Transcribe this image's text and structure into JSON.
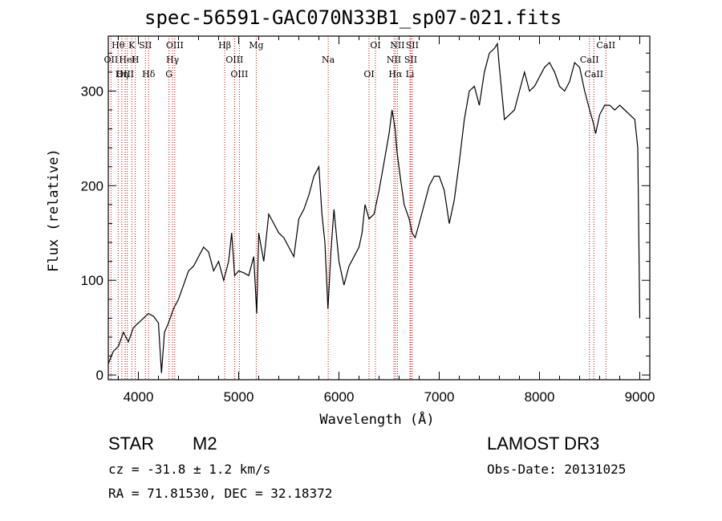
{
  "chart_data": {
    "type": "line",
    "title": "spec-56591-GAC070N33B1_sp07-021.fits",
    "xlabel": "Wavelength (Å)",
    "ylabel": "Flux (relative)",
    "xlim": [
      3700,
      9100
    ],
    "ylim": [
      -5,
      358
    ],
    "xticks": [
      4000,
      5000,
      6000,
      7000,
      8000,
      9000
    ],
    "yticks": [
      0,
      100,
      200,
      300
    ],
    "series": [
      {
        "name": "flux",
        "x": [
          3700,
          3750,
          3800,
          3850,
          3900,
          3950,
          4000,
          4050,
          4100,
          4150,
          4200,
          4230,
          4260,
          4300,
          4350,
          4400,
          4450,
          4500,
          4550,
          4600,
          4650,
          4700,
          4750,
          4800,
          4850,
          4900,
          4930,
          4960,
          5000,
          5050,
          5100,
          5150,
          5180,
          5200,
          5250,
          5300,
          5350,
          5400,
          5450,
          5500,
          5550,
          5600,
          5650,
          5700,
          5750,
          5800,
          5830,
          5860,
          5890,
          5920,
          5950,
          6000,
          6050,
          6100,
          6150,
          6200,
          6230,
          6260,
          6300,
          6350,
          6400,
          6450,
          6500,
          6530,
          6560,
          6580,
          6610,
          6650,
          6700,
          6730,
          6760,
          6800,
          6850,
          6900,
          6950,
          7000,
          7050,
          7100,
          7150,
          7200,
          7250,
          7300,
          7350,
          7400,
          7450,
          7500,
          7550,
          7580,
          7600,
          7650,
          7700,
          7750,
          7800,
          7850,
          7900,
          7950,
          8000,
          8050,
          8100,
          8150,
          8200,
          8250,
          8300,
          8350,
          8400,
          8450,
          8500,
          8540,
          8560,
          8600,
          8650,
          8700,
          8750,
          8800,
          8850,
          8900,
          8950,
          8980,
          9000
        ],
        "values": [
          12,
          25,
          30,
          45,
          35,
          50,
          55,
          60,
          65,
          62,
          55,
          2,
          45,
          55,
          70,
          80,
          95,
          110,
          115,
          125,
          135,
          130,
          110,
          120,
          100,
          120,
          150,
          105,
          110,
          108,
          105,
          125,
          65,
          150,
          120,
          170,
          160,
          150,
          145,
          135,
          125,
          165,
          175,
          190,
          210,
          220,
          170,
          140,
          70,
          130,
          175,
          120,
          95,
          115,
          125,
          135,
          150,
          180,
          165,
          170,
          195,
          225,
          255,
          280,
          260,
          235,
          210,
          180,
          165,
          150,
          145,
          160,
          180,
          200,
          210,
          210,
          195,
          160,
          185,
          225,
          270,
          300,
          305,
          285,
          320,
          340,
          345,
          350,
          325,
          270,
          275,
          280,
          300,
          320,
          300,
          305,
          315,
          325,
          330,
          320,
          305,
          300,
          310,
          330,
          325,
          300,
          280,
          265,
          255,
          275,
          285,
          285,
          280,
          285,
          280,
          275,
          270,
          240,
          60
        ]
      }
    ],
    "lines": [
      {
        "label": "Hθ",
        "wl": 3798
      },
      {
        "label": "OII",
        "wl": 3727
      },
      {
        "label": "OIII",
        "wl": 3869
      },
      {
        "label": "K",
        "wl": 3934
      },
      {
        "label": "HeI",
        "wl": 3889
      },
      {
        "label": "Hη",
        "wl": 3835
      },
      {
        "label": "SII",
        "wl": 4070
      },
      {
        "label": "H",
        "wl": 3969
      },
      {
        "label": "Hδ",
        "wl": 4102
      },
      {
        "label": "OIII",
        "wl": 4363
      },
      {
        "label": "Hγ",
        "wl": 4341
      },
      {
        "label": "G",
        "wl": 4305
      },
      {
        "label": "Hβ",
        "wl": 4861
      },
      {
        "label": "OIII",
        "wl": 4959
      },
      {
        "label": "OIII",
        "wl": 5007
      },
      {
        "label": "Mg",
        "wl": 5175
      },
      {
        "label": "Na",
        "wl": 5893
      },
      {
        "label": "OI",
        "wl": 6300
      },
      {
        "label": "OI",
        "wl": 6364
      },
      {
        "label": "NII",
        "wl": 6548
      },
      {
        "label": "Hα",
        "wl": 6563
      },
      {
        "label": "NII",
        "wl": 6583
      },
      {
        "label": "SII",
        "wl": 6716
      },
      {
        "label": "Li",
        "wl": 6708
      },
      {
        "label": "SII",
        "wl": 6731
      },
      {
        "label": "CaII",
        "wl": 8498
      },
      {
        "label": "CaII",
        "wl": 8542
      },
      {
        "label": "CaII",
        "wl": 8662
      }
    ]
  },
  "info": {
    "object_class": "STAR",
    "subclass": "M2",
    "survey": "LAMOST DR3",
    "redshift": "cz = -31.8 ± 1.2 km/s",
    "obs_date": "Obs-Date: 20131025",
    "coords": "RA =  71.81530, DEC =  32.18372"
  },
  "colors": {
    "line_marker": "#cc0000",
    "spectrum": "#000000",
    "axes": "#000000"
  }
}
